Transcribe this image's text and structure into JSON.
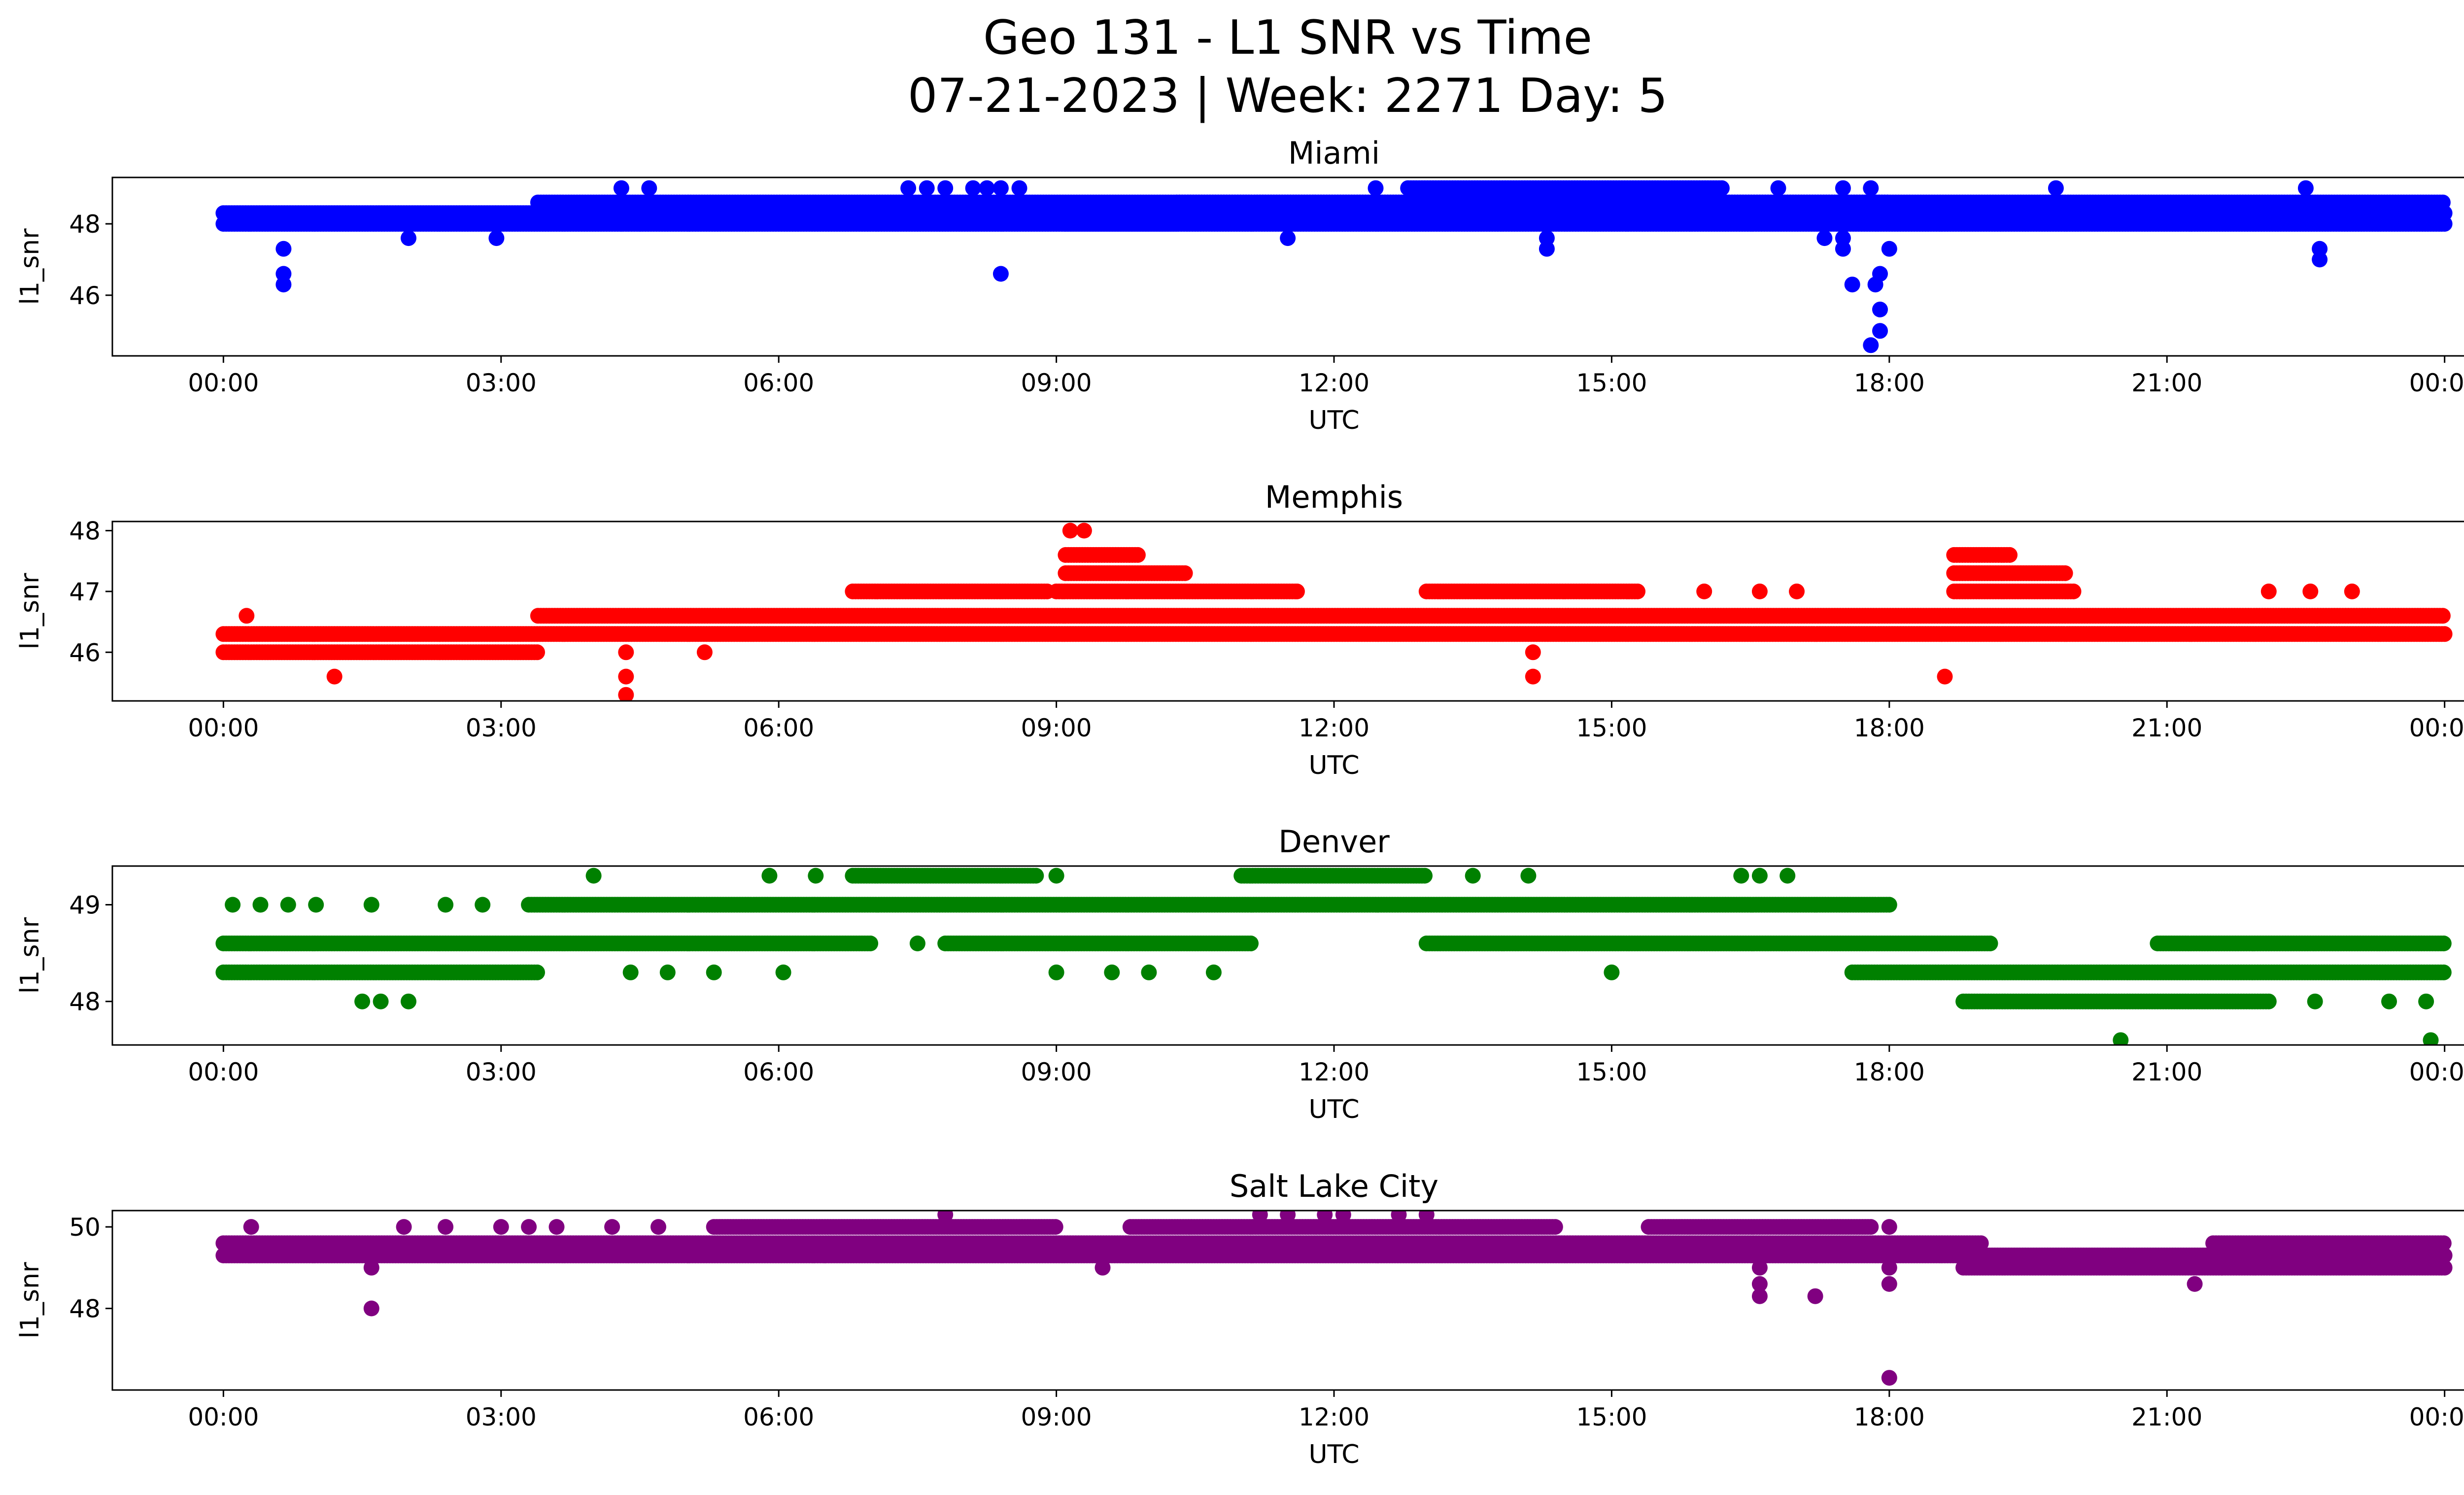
{
  "figure": {
    "title_line1": "Geo 131 - L1 SNR vs Time",
    "title_line2": "07-21-2023 | Week: 2271 Day: 5"
  },
  "chart_data": [
    {
      "type": "scatter",
      "title": "Miami",
      "xlabel": "UTC",
      "ylabel": "l1_snr",
      "color": "#0000ff",
      "x_ticks": [
        "00:00",
        "03:00",
        "06:00",
        "09:00",
        "12:00",
        "15:00",
        "18:00",
        "21:00",
        "00:00"
      ],
      "xlim_hours": [
        -1.2,
        25.2
      ],
      "y_ticks": [
        46,
        48
      ],
      "ylim": [
        44.3,
        49.3
      ],
      "bands": [
        {
          "y": 48.0,
          "from": 0.0,
          "to": 24.0
        },
        {
          "y": 48.3,
          "from": 0.0,
          "to": 24.0
        },
        {
          "y": 48.6,
          "from": 3.4,
          "to": 24.0
        },
        {
          "y": 48.0,
          "from": 9.1,
          "to": 10.3
        },
        {
          "y": 48.6,
          "from": 10.3,
          "to": 18.0
        },
        {
          "y": 49.0,
          "from": 12.8,
          "to": 16.2
        }
      ],
      "points": [
        [
          0.65,
          47.3
        ],
        [
          0.65,
          46.6
        ],
        [
          0.65,
          46.3
        ],
        [
          2.0,
          47.6
        ],
        [
          2.95,
          47.6
        ],
        [
          4.3,
          49.0
        ],
        [
          4.3,
          48.0
        ],
        [
          4.5,
          48.0
        ],
        [
          4.6,
          49.0
        ],
        [
          7.4,
          49.0
        ],
        [
          7.6,
          49.0
        ],
        [
          7.8,
          49.0
        ],
        [
          8.1,
          49.0
        ],
        [
          8.25,
          49.0
        ],
        [
          8.4,
          49.0
        ],
        [
          8.4,
          46.6
        ],
        [
          8.6,
          49.0
        ],
        [
          11.5,
          47.6
        ],
        [
          12.45,
          49.0
        ],
        [
          14.3,
          47.6
        ],
        [
          14.3,
          47.3
        ],
        [
          16.8,
          49.0
        ],
        [
          17.3,
          48.0
        ],
        [
          17.3,
          47.6
        ],
        [
          17.5,
          49.0
        ],
        [
          17.5,
          47.6
        ],
        [
          17.5,
          47.3
        ],
        [
          17.6,
          46.3
        ],
        [
          17.8,
          49.0
        ],
        [
          17.85,
          46.3
        ],
        [
          17.9,
          46.6
        ],
        [
          17.9,
          45.6
        ],
        [
          17.9,
          45.0
        ],
        [
          17.8,
          44.6
        ],
        [
          18.0,
          47.3
        ],
        [
          19.8,
          49.0
        ],
        [
          22.5,
          49.0
        ],
        [
          22.65,
          47.3
        ],
        [
          22.65,
          47.0
        ]
      ]
    },
    {
      "type": "scatter",
      "title": "Memphis",
      "xlabel": "UTC",
      "ylabel": "l1_snr",
      "color": "#ff0000",
      "x_ticks": [
        "00:00",
        "03:00",
        "06:00",
        "09:00",
        "12:00",
        "15:00",
        "18:00",
        "21:00",
        "00:00"
      ],
      "xlim_hours": [
        -1.2,
        25.2
      ],
      "y_ticks": [
        46,
        47,
        48
      ],
      "ylim": [
        45.2,
        48.15
      ],
      "bands": [
        {
          "y": 46.0,
          "from": 0.0,
          "to": 3.4
        },
        {
          "y": 46.3,
          "from": 0.0,
          "to": 24.0
        },
        {
          "y": 46.6,
          "from": 3.4,
          "to": 24.0
        },
        {
          "y": 47.0,
          "from": 6.8,
          "to": 8.9
        },
        {
          "y": 47.0,
          "from": 9.0,
          "to": 11.6
        },
        {
          "y": 47.3,
          "from": 9.1,
          "to": 10.4
        },
        {
          "y": 47.6,
          "from": 9.1,
          "to": 9.9
        },
        {
          "y": 47.0,
          "from": 13.0,
          "to": 15.3
        },
        {
          "y": 47.0,
          "from": 18.7,
          "to": 20.0
        },
        {
          "y": 47.3,
          "from": 18.7,
          "to": 19.9
        },
        {
          "y": 47.6,
          "from": 18.7,
          "to": 19.3
        }
      ],
      "points": [
        [
          0.25,
          46.6
        ],
        [
          1.2,
          45.6
        ],
        [
          4.35,
          46.0
        ],
        [
          4.35,
          45.6
        ],
        [
          4.35,
          45.3
        ],
        [
          5.2,
          46.0
        ],
        [
          9.15,
          48.0
        ],
        [
          9.3,
          48.0
        ],
        [
          11.6,
          47.0
        ],
        [
          14.15,
          46.0
        ],
        [
          14.15,
          45.6
        ],
        [
          16.0,
          47.0
        ],
        [
          16.6,
          47.0
        ],
        [
          17.0,
          47.0
        ],
        [
          18.6,
          45.6
        ],
        [
          22.1,
          47.0
        ],
        [
          22.55,
          47.0
        ],
        [
          23.0,
          47.0
        ]
      ]
    },
    {
      "type": "scatter",
      "title": "Denver",
      "xlabel": "UTC",
      "ylabel": "l1_snr",
      "color": "#008000",
      "x_ticks": [
        "00:00",
        "03:00",
        "06:00",
        "09:00",
        "12:00",
        "15:00",
        "18:00",
        "21:00",
        "00:00"
      ],
      "xlim_hours": [
        -1.2,
        25.2
      ],
      "y_ticks": [
        48,
        49
      ],
      "ylim": [
        47.55,
        49.4
      ],
      "bands": [
        {
          "y": 48.6,
          "from": 0.0,
          "to": 7.0
        },
        {
          "y": 48.3,
          "from": 0.0,
          "to": 3.4
        },
        {
          "y": 49.0,
          "from": 3.3,
          "to": 18.0
        },
        {
          "y": 48.6,
          "from": 7.8,
          "to": 11.1
        },
        {
          "y": 49.3,
          "from": 6.8,
          "to": 8.8
        },
        {
          "y": 49.3,
          "from": 11.0,
          "to": 13.0
        },
        {
          "y": 48.6,
          "from": 13.0,
          "to": 19.1
        },
        {
          "y": 48.3,
          "from": 17.6,
          "to": 24.0
        },
        {
          "y": 48.0,
          "from": 18.8,
          "to": 22.1
        },
        {
          "y": 48.6,
          "from": 20.9,
          "to": 24.0
        }
      ],
      "points": [
        [
          0.1,
          49.0
        ],
        [
          0.4,
          49.0
        ],
        [
          0.7,
          49.0
        ],
        [
          1.0,
          49.0
        ],
        [
          1.6,
          49.0
        ],
        [
          2.4,
          49.0
        ],
        [
          2.8,
          49.0
        ],
        [
          1.5,
          48.0
        ],
        [
          1.7,
          48.0
        ],
        [
          2.0,
          48.0
        ],
        [
          4.0,
          49.3
        ],
        [
          4.4,
          48.3
        ],
        [
          4.8,
          48.3
        ],
        [
          5.3,
          48.3
        ],
        [
          5.9,
          49.3
        ],
        [
          6.4,
          49.3
        ],
        [
          6.05,
          48.3
        ],
        [
          7.5,
          48.6
        ],
        [
          9.0,
          49.3
        ],
        [
          9.0,
          48.3
        ],
        [
          9.6,
          48.3
        ],
        [
          10.0,
          48.3
        ],
        [
          10.7,
          48.3
        ],
        [
          13.5,
          49.3
        ],
        [
          14.1,
          49.3
        ],
        [
          15.0,
          48.3
        ],
        [
          16.4,
          49.3
        ],
        [
          16.6,
          49.3
        ],
        [
          16.9,
          49.3
        ],
        [
          20.5,
          47.6
        ],
        [
          22.6,
          48.0
        ],
        [
          23.4,
          48.0
        ],
        [
          23.8,
          48.0
        ],
        [
          23.85,
          47.6
        ]
      ]
    },
    {
      "type": "scatter",
      "title": "Salt Lake City",
      "xlabel": "UTC",
      "ylabel": "l1_snr",
      "color": "#800080",
      "x_ticks": [
        "00:00",
        "03:00",
        "06:00",
        "09:00",
        "12:00",
        "15:00",
        "18:00",
        "21:00",
        "00:00"
      ],
      "xlim_hours": [
        -1.2,
        25.2
      ],
      "y_ticks": [
        48,
        50
      ],
      "ylim": [
        46.0,
        50.4
      ],
      "bands": [
        {
          "y": 49.3,
          "from": 0.0,
          "to": 24.0
        },
        {
          "y": 49.6,
          "from": 0.0,
          "to": 19.0
        },
        {
          "y": 50.0,
          "from": 5.3,
          "to": 9.0
        },
        {
          "y": 50.0,
          "from": 9.8,
          "to": 14.4
        },
        {
          "y": 50.0,
          "from": 15.4,
          "to": 17.8
        },
        {
          "y": 49.0,
          "from": 18.8,
          "to": 21.6
        },
        {
          "y": 49.6,
          "from": 21.5,
          "to": 24.0
        },
        {
          "y": 49.0,
          "from": 21.6,
          "to": 24.0
        }
      ],
      "points": [
        [
          0.3,
          50.0
        ],
        [
          1.6,
          49.0
        ],
        [
          1.6,
          48.0
        ],
        [
          1.95,
          50.0
        ],
        [
          2.4,
          50.0
        ],
        [
          3.0,
          50.0
        ],
        [
          3.3,
          50.0
        ],
        [
          3.6,
          50.0
        ],
        [
          4.2,
          50.0
        ],
        [
          4.7,
          50.0
        ],
        [
          6.5,
          49.3
        ],
        [
          7.8,
          50.3
        ],
        [
          9.5,
          49.0
        ],
        [
          11.2,
          50.3
        ],
        [
          11.5,
          50.3
        ],
        [
          11.9,
          50.3
        ],
        [
          12.1,
          50.3
        ],
        [
          12.7,
          50.3
        ],
        [
          13.0,
          50.3
        ],
        [
          16.6,
          49.0
        ],
        [
          16.6,
          48.6
        ],
        [
          16.6,
          48.3
        ],
        [
          17.2,
          48.3
        ],
        [
          18.0,
          50.0
        ],
        [
          18.0,
          49.0
        ],
        [
          18.0,
          48.6
        ],
        [
          18.0,
          46.3
        ],
        [
          21.3,
          48.6
        ]
      ]
    }
  ]
}
